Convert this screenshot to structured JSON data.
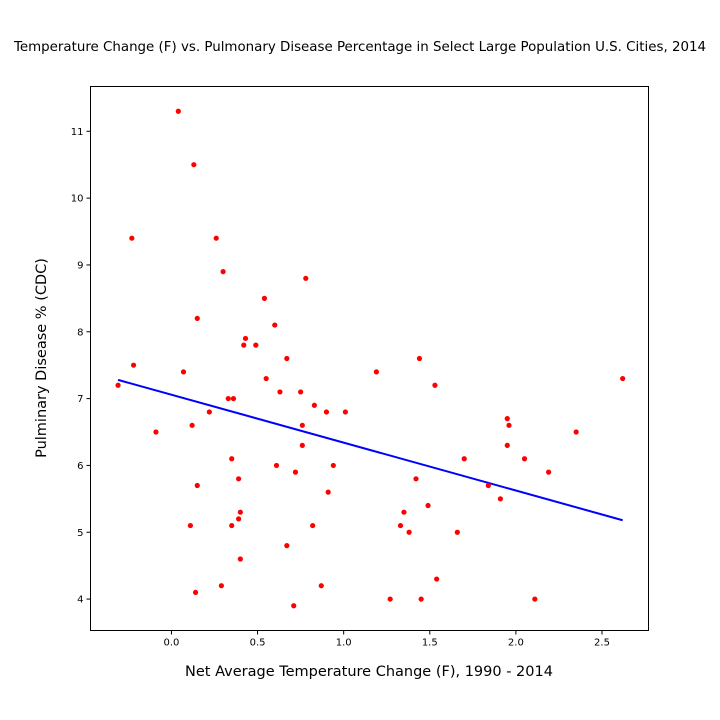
{
  "chart_data": {
    "type": "scatter",
    "title": "Temperature Change (F) vs. Pulmonary Disease Percentage in Select Large Population U.S. Cities, 2014",
    "xlabel": "Net Average Temperature Change (F), 1990 - 2014",
    "ylabel": "Pulminary Disease % (CDC)",
    "xlim": [
      -0.47,
      2.77
    ],
    "ylim": [
      3.53,
      11.67
    ],
    "xticks": [
      0.0,
      0.5,
      1.0,
      1.5,
      2.0,
      2.5
    ],
    "xtick_labels": [
      "0.0",
      "0.5",
      "1.0",
      "1.5",
      "2.0",
      "2.5"
    ],
    "yticks": [
      4,
      5,
      6,
      7,
      8,
      9,
      10,
      11
    ],
    "ytick_labels": [
      "4",
      "5",
      "6",
      "7",
      "8",
      "9",
      "10",
      "11"
    ],
    "grid": false,
    "legend": false,
    "point_color": "#ff0000",
    "line_color": "#0000ff",
    "points": [
      {
        "x": 0.04,
        "y": 11.3
      },
      {
        "x": 0.13,
        "y": 10.5
      },
      {
        "x": -0.23,
        "y": 9.4
      },
      {
        "x": 0.26,
        "y": 9.4
      },
      {
        "x": 0.3,
        "y": 8.9
      },
      {
        "x": 0.78,
        "y": 8.8
      },
      {
        "x": 0.54,
        "y": 8.5
      },
      {
        "x": 0.15,
        "y": 8.2
      },
      {
        "x": 0.6,
        "y": 8.1
      },
      {
        "x": 0.43,
        "y": 7.9
      },
      {
        "x": 0.42,
        "y": 7.8
      },
      {
        "x": 0.49,
        "y": 7.8
      },
      {
        "x": -0.22,
        "y": 7.5
      },
      {
        "x": 0.67,
        "y": 7.6
      },
      {
        "x": 1.44,
        "y": 7.6
      },
      {
        "x": 0.07,
        "y": 7.4
      },
      {
        "x": 1.19,
        "y": 7.4
      },
      {
        "x": 0.55,
        "y": 7.3
      },
      {
        "x": -0.31,
        "y": 7.2
      },
      {
        "x": 1.53,
        "y": 7.2
      },
      {
        "x": 2.62,
        "y": 7.3
      },
      {
        "x": 0.63,
        "y": 7.1
      },
      {
        "x": 0.75,
        "y": 7.1
      },
      {
        "x": 0.33,
        "y": 7.0
      },
      {
        "x": 0.36,
        "y": 7.0
      },
      {
        "x": 0.83,
        "y": 6.9
      },
      {
        "x": 0.9,
        "y": 6.8
      },
      {
        "x": 1.01,
        "y": 6.8
      },
      {
        "x": 0.22,
        "y": 6.8
      },
      {
        "x": 1.95,
        "y": 6.7
      },
      {
        "x": 1.96,
        "y": 6.6
      },
      {
        "x": 0.12,
        "y": 6.6
      },
      {
        "x": 0.76,
        "y": 6.6
      },
      {
        "x": -0.09,
        "y": 6.5
      },
      {
        "x": 2.35,
        "y": 6.5
      },
      {
        "x": 0.76,
        "y": 6.3
      },
      {
        "x": 1.95,
        "y": 6.3
      },
      {
        "x": 0.35,
        "y": 6.1
      },
      {
        "x": 1.7,
        "y": 6.1
      },
      {
        "x": 2.05,
        "y": 6.1
      },
      {
        "x": 0.61,
        "y": 6.0
      },
      {
        "x": 0.94,
        "y": 6.0
      },
      {
        "x": 0.72,
        "y": 5.9
      },
      {
        "x": 2.19,
        "y": 5.9
      },
      {
        "x": 0.39,
        "y": 5.8
      },
      {
        "x": 1.42,
        "y": 5.8
      },
      {
        "x": 0.15,
        "y": 5.7
      },
      {
        "x": 1.84,
        "y": 5.7
      },
      {
        "x": 0.91,
        "y": 5.6
      },
      {
        "x": 1.91,
        "y": 5.5
      },
      {
        "x": 1.49,
        "y": 5.4
      },
      {
        "x": 0.4,
        "y": 5.3
      },
      {
        "x": 1.35,
        "y": 5.3
      },
      {
        "x": 0.39,
        "y": 5.2
      },
      {
        "x": 0.11,
        "y": 5.1
      },
      {
        "x": 0.35,
        "y": 5.1
      },
      {
        "x": 0.82,
        "y": 5.1
      },
      {
        "x": 1.33,
        "y": 5.1
      },
      {
        "x": 1.38,
        "y": 5.0
      },
      {
        "x": 1.66,
        "y": 5.0
      },
      {
        "x": 0.67,
        "y": 4.8
      },
      {
        "x": 0.4,
        "y": 4.6
      },
      {
        "x": 1.54,
        "y": 4.3
      },
      {
        "x": 0.29,
        "y": 4.2
      },
      {
        "x": 0.87,
        "y": 4.2
      },
      {
        "x": 0.14,
        "y": 4.1
      },
      {
        "x": 1.27,
        "y": 4.0
      },
      {
        "x": 1.45,
        "y": 4.0
      },
      {
        "x": 2.11,
        "y": 4.0
      },
      {
        "x": 0.71,
        "y": 3.9
      }
    ],
    "regression_line": {
      "x": [
        -0.31,
        2.62
      ],
      "y": [
        7.28,
        5.18
      ]
    }
  }
}
